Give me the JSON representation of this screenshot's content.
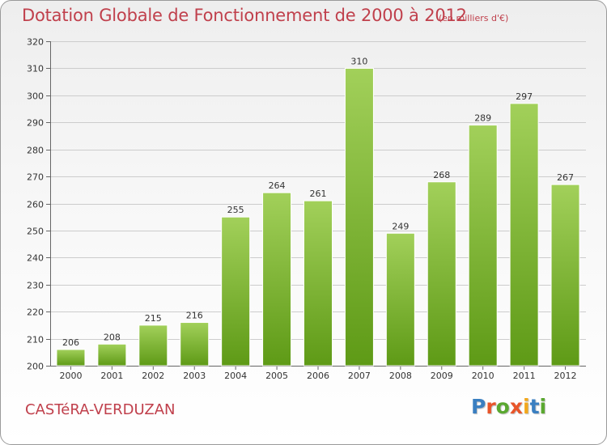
{
  "header": {
    "title": "Dotation Globale de Fonctionnement de 2000 à 2012",
    "subtitle": "(en milliers d'€)"
  },
  "footer": {
    "commune": "CASTéRA-VERDUZAN",
    "logo": {
      "letters": [
        "P",
        "r",
        "o",
        "x",
        "i",
        "t",
        "i"
      ],
      "colors": [
        "#3a7fc1",
        "#e8552a",
        "#5aa830",
        "#e8552a",
        "#f2a81d",
        "#3a7fc1",
        "#5aa830"
      ]
    }
  },
  "colors": {
    "accent": "#c0404c",
    "bar_light": "#a2d05a",
    "bar_dark": "#5e9a16",
    "grid": "#cccccc"
  },
  "chart_data": {
    "type": "bar",
    "title": "Dotation Globale de Fonctionnement de 2000 à 2012",
    "subtitle": "(en milliers d'€)",
    "categories": [
      "2000",
      "2001",
      "2002",
      "2003",
      "2004",
      "2005",
      "2006",
      "2007",
      "2008",
      "2009",
      "2010",
      "2011",
      "2012"
    ],
    "values": [
      206,
      208,
      215,
      216,
      255,
      264,
      261,
      310,
      249,
      268,
      289,
      297,
      267
    ],
    "ylim": [
      200,
      320
    ],
    "yticks": [
      200,
      210,
      220,
      230,
      240,
      250,
      260,
      270,
      280,
      290,
      300,
      310,
      320
    ],
    "grid": true,
    "xlabel": "",
    "ylabel": ""
  }
}
